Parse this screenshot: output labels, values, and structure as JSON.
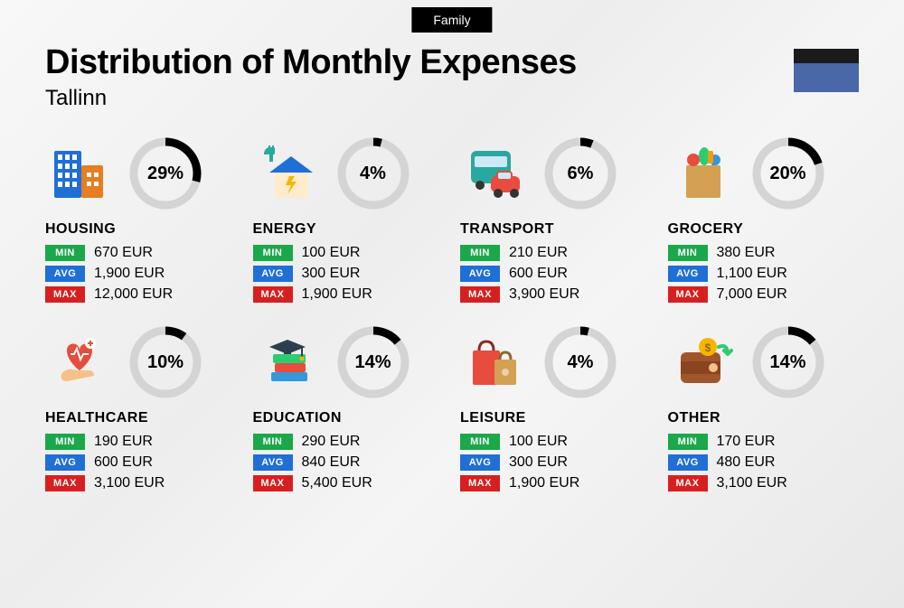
{
  "tag": "Family",
  "title": "Distribution of Monthly Expenses",
  "subtitle": "Tallinn",
  "flag_colors": [
    "#1b1b1b",
    "#4a67a8",
    "#4a67a8"
  ],
  "ring": {
    "radius": 35,
    "stroke_width": 9,
    "bg_color": "#d4d4d4",
    "fg_color": "#000000"
  },
  "badges": {
    "min": {
      "label": "MIN",
      "bg": "#1aa84a"
    },
    "avg": {
      "label": "AVG",
      "bg": "#1f6fd6"
    },
    "max": {
      "label": "MAX",
      "bg": "#d81f1f"
    }
  },
  "currency": "EUR",
  "categories": [
    {
      "key": "housing",
      "label": "HOUSING",
      "pct": 29,
      "min": "670",
      "avg": "1,900",
      "max": "12,000",
      "icon": "buildings"
    },
    {
      "key": "energy",
      "label": "ENERGY",
      "pct": 4,
      "min": "100",
      "avg": "300",
      "max": "1,900",
      "icon": "energy-house"
    },
    {
      "key": "transport",
      "label": "TRANSPORT",
      "pct": 6,
      "min": "210",
      "avg": "600",
      "max": "3,900",
      "icon": "bus-car"
    },
    {
      "key": "grocery",
      "label": "GROCERY",
      "pct": 20,
      "min": "380",
      "avg": "1,100",
      "max": "7,000",
      "icon": "grocery-bag"
    },
    {
      "key": "healthcare",
      "label": "HEALTHCARE",
      "pct": 10,
      "min": "190",
      "avg": "600",
      "max": "3,100",
      "icon": "heart-hand"
    },
    {
      "key": "education",
      "label": "EDUCATION",
      "pct": 14,
      "min": "290",
      "avg": "840",
      "max": "5,400",
      "icon": "grad-books"
    },
    {
      "key": "leisure",
      "label": "LEISURE",
      "pct": 4,
      "min": "100",
      "avg": "300",
      "max": "1,900",
      "icon": "shopping-bags"
    },
    {
      "key": "other",
      "label": "OTHER",
      "pct": 14,
      "min": "170",
      "avg": "480",
      "max": "3,100",
      "icon": "wallet"
    }
  ],
  "icons": {
    "buildings": {
      "type": "buildings",
      "c1": "#1f6fd6",
      "c2": "#e67e22",
      "c3": "#ffffff"
    },
    "energy-house": {
      "type": "energy-house",
      "roof": "#1f6fd6",
      "wall": "#ffeccc",
      "bolt": "#f7b500",
      "plug": "#2aa8a0"
    },
    "bus-car": {
      "type": "bus-car",
      "bus": "#2aa8a0",
      "car": "#e74c3c",
      "window": "#cde8f7"
    },
    "grocery-bag": {
      "type": "grocery-bag",
      "bag": "#d4a054",
      "veg1": "#2ecc71",
      "veg2": "#e74c3c",
      "veg3": "#3498db"
    },
    "heart-hand": {
      "type": "heart-hand",
      "heart": "#e74c3c",
      "hand": "#f5c188",
      "plus": "#e74c3c",
      "pulse": "#ffffff"
    },
    "grad-books": {
      "type": "grad-books",
      "cap": "#2c3e50",
      "b1": "#2ecc71",
      "b2": "#e74c3c",
      "b3": "#3498db"
    },
    "shopping-bags": {
      "type": "shopping-bags",
      "bag1": "#e74c3c",
      "bag2": "#d4a054"
    },
    "wallet": {
      "type": "wallet",
      "body": "#a0552a",
      "coin": "#f7b500",
      "arrow": "#2ecc71"
    }
  }
}
